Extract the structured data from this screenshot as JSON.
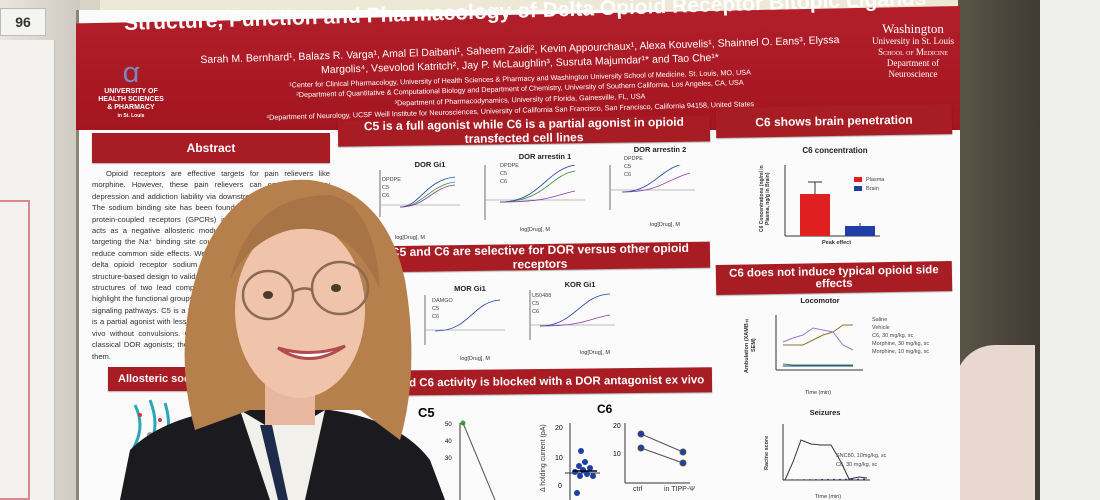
{
  "board_number": "96",
  "poster": {
    "title": "Structure, Function and Pharmacology of Delta Opioid Receptor Bitopic Ligands",
    "authors_line1": "Sarah M. Bernhard¹, Balazs R. Varga¹, Amal El Daibani¹, Saheem Zaidi², Kevin Appourchaux¹, Alexa Kouvelis¹, Shainnel O. Eans³, Elyssa",
    "authors_line2": "Margolis⁴, Vsevolod Katritch², Jay P. McLaughlin³, Susruta Majumdar¹* and Tao Che¹*",
    "affiliations": [
      "¹Center for Clinical Pharmacology, University of Health Sciences & Pharmacy and Washington University School of Medicine, St. Louis, MO, USA",
      "²Department of Quantitative & Computational Biology and Department of Chemistry, University of Southern California, Los Angeles, CA, USA",
      "³Department of Pharmacodynamics, University of Florida, Gainesville, FL, USA",
      "⁴Department of Neurology, UCSF Weill Institute for Neurosciences, University of California San Francisco, San Francisco, California 94158, United States"
    ],
    "logo_left": {
      "line1": "UNIVERSITY OF",
      "line2": "HEALTH SCIENCES",
      "line3": "& PHARMACY",
      "line4": "in St. Louis"
    },
    "logo_right": {
      "line1": "Washington",
      "line2": "University in St. Louis",
      "line3": "School of Medicine",
      "line4": "Department of",
      "line5": "Neuroscience"
    },
    "sections": {
      "abstract": "Abstract",
      "agonist": "C5 is a full agonist while C6 is a partial agonist  in opioid transfected cell lines",
      "selective": "C5 and C6 are selective for DOR versus other opioid receptors",
      "allosteric": "Allosteric sodium site",
      "antagonist": "C5 and C6 activity is blocked with a DOR antagonist ex vivo",
      "brain": "C6 shows brain penetration",
      "side_effects": "C6 does not induce typical opioid side effects"
    },
    "abstract_text": "Opioid receptors are effective targets for pain relievers like morphine. However, these pain relievers can cause respiratory depression and addiction liability via downstream signaling pathways. The sodium binding site has been found to be conserved across G protein-coupled receptors (GPCRs) including opioid receptors and acts as a negative allosteric modulator of GPCR activity. Ligands targeting the Na⁺ binding site could alter downstream signaling and reduce common side effects. We explored ligands engaging both the delta opioid receptor sodium site and the orthosteric site using structure-based design to validate our design strategy of targeting. The structures of two lead compounds bound to DOR. The structures highlight the functional groups and residues involved in two key GPCR signaling pathways. C5 is a full agonist that activates the receptor; C6 is a partial agonist with less liability. Both showed analgesic actions in vivo without convulsions. Convulsions have limited first generation classical DOR agonists; the sodium site may be an avenue to avoid them.",
    "charts": {
      "dor_gi1": {
        "title": "DOR Gi1",
        "legend": [
          "DPDPE",
          "C5",
          "C6"
        ],
        "xlabel": "log[Drug], M"
      },
      "dor_arr1": {
        "title": "DOR arrestin 1",
        "legend": [
          "DPDPE",
          "C5",
          "C6"
        ],
        "xlabel": "log[Drug], M"
      },
      "dor_arr2": {
        "title": "DOR arrestin 2",
        "legend": [
          "DPDPE",
          "C5",
          "C6"
        ],
        "xlabel": "log[Drug], M"
      },
      "mor_gi1": {
        "title": "MOR Gi1",
        "legend": [
          "DAMGO",
          "C5",
          "C6"
        ],
        "xlabel": "log[Drug], M"
      },
      "kor_gi1": {
        "title": "KOR Gi1",
        "legend": [
          "U50488",
          "C5",
          "C6"
        ],
        "xlabel": "log[Drug], M"
      },
      "c5_exvivo": {
        "title": "C5",
        "ylabel": "current (pA)"
      },
      "c6_exvivo": {
        "title": "C6",
        "ylabel": "Δ holding current (pA)",
        "xticks": [
          "ctrl",
          "in TIPP-Ψ"
        ]
      },
      "c6_conc": {
        "title": "C6 concentration",
        "legend": [
          "Plasma",
          "Brain"
        ],
        "xlabel": "Peak effect",
        "ylabel": "C6 Concentrations (ng/ml in Plasma, ng/g in Brain)"
      },
      "locomotor": {
        "title": "Locomotor",
        "legend": [
          "Saline",
          "Vehicle",
          "C6, 30 mg/kg, sc",
          "Morphine, 30 mg/kg, sc",
          "Morphine, 10 mg/kg, sc"
        ],
        "xlabel": "Time (min)",
        "ylabel": "Ambulation (XAMB± SEM)"
      },
      "seizures": {
        "title": "Seizures",
        "legend": [
          "SNC80, 10mg/kg, sc",
          "C6, 30 mg/kg, sc"
        ],
        "xlabel": "Time (min)",
        "ylabel": "Racine score"
      }
    }
  },
  "colors": {
    "poster_red": "#a81c24",
    "plasma": "#e02020",
    "brain": "#1f3fa8"
  }
}
